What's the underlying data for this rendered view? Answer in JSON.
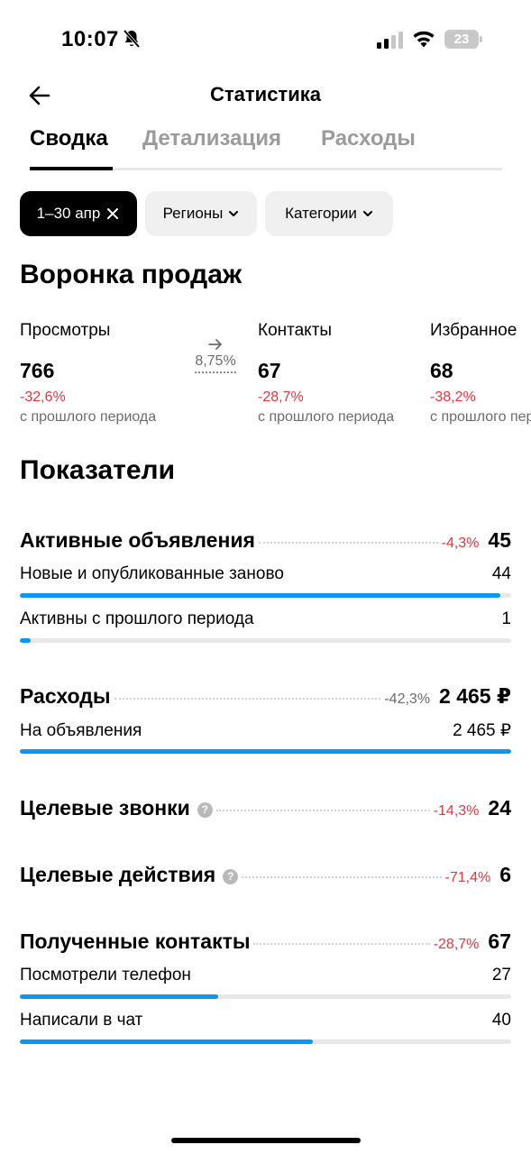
{
  "status_bar": {
    "time": "10:07",
    "battery": "23"
  },
  "header": {
    "title": "Статистика"
  },
  "tabs": [
    {
      "label": "Сводка",
      "active": true
    },
    {
      "label": "Детализация",
      "active": false
    },
    {
      "label": "Расходы",
      "active": false
    }
  ],
  "filters": {
    "period": "1–30 апр",
    "regions": "Регионы",
    "categories": "Категории"
  },
  "funnel": {
    "title": "Воронка продаж",
    "conversion": "8,75%",
    "items": [
      {
        "label": "Просмотры",
        "value": "766",
        "change": "-32,6%",
        "sub": "с прошлого периода"
      },
      {
        "label": "Контакты",
        "value": "67",
        "change": "-28,7%",
        "sub": "с прошлого периода"
      },
      {
        "label": "Избранное",
        "value": "68",
        "change": "-38,2%",
        "sub": "с прошлого периода"
      }
    ]
  },
  "metrics": {
    "title": "Показатели",
    "active_ads": {
      "name": "Активные объявления",
      "change": "-4,3%",
      "value": "45",
      "rows": [
        {
          "label": "Новые и опубликованные заново",
          "value": "44",
          "fill": 0.978
        },
        {
          "label": "Активны с прошлого периода",
          "value": "1",
          "fill": 0.022
        }
      ]
    },
    "expenses": {
      "name": "Расходы",
      "change": "-42,3%",
      "value": "2 465 ₽",
      "rows": [
        {
          "label": "На объявления",
          "value": "2 465 ₽",
          "fill": 1.0
        }
      ]
    },
    "target_calls": {
      "name": "Целевые звонки",
      "change": "-14,3%",
      "value": "24"
    },
    "target_actions": {
      "name": "Целевые действия",
      "change": "-71,4%",
      "value": "6"
    },
    "contacts": {
      "name": "Полученные контакты",
      "change": "-28,7%",
      "value": "67",
      "rows": [
        {
          "label": "Посмотрели телефон",
          "value": "27",
          "fill": 0.403
        },
        {
          "label": "Написали в чат",
          "value": "40",
          "fill": 0.597
        }
      ]
    }
  },
  "colors": {
    "accent_bar": "#0a97ef",
    "negative": "#e8343f",
    "muted": "#6b6b6b"
  },
  "icons": {
    "back": "arrow-left-icon",
    "bell": "bell-slash-icon",
    "signal": "cellular-signal-icon",
    "wifi": "wifi-icon",
    "close": "close-icon",
    "chevron": "chevron-down-icon",
    "help": "help-circle-icon"
  }
}
